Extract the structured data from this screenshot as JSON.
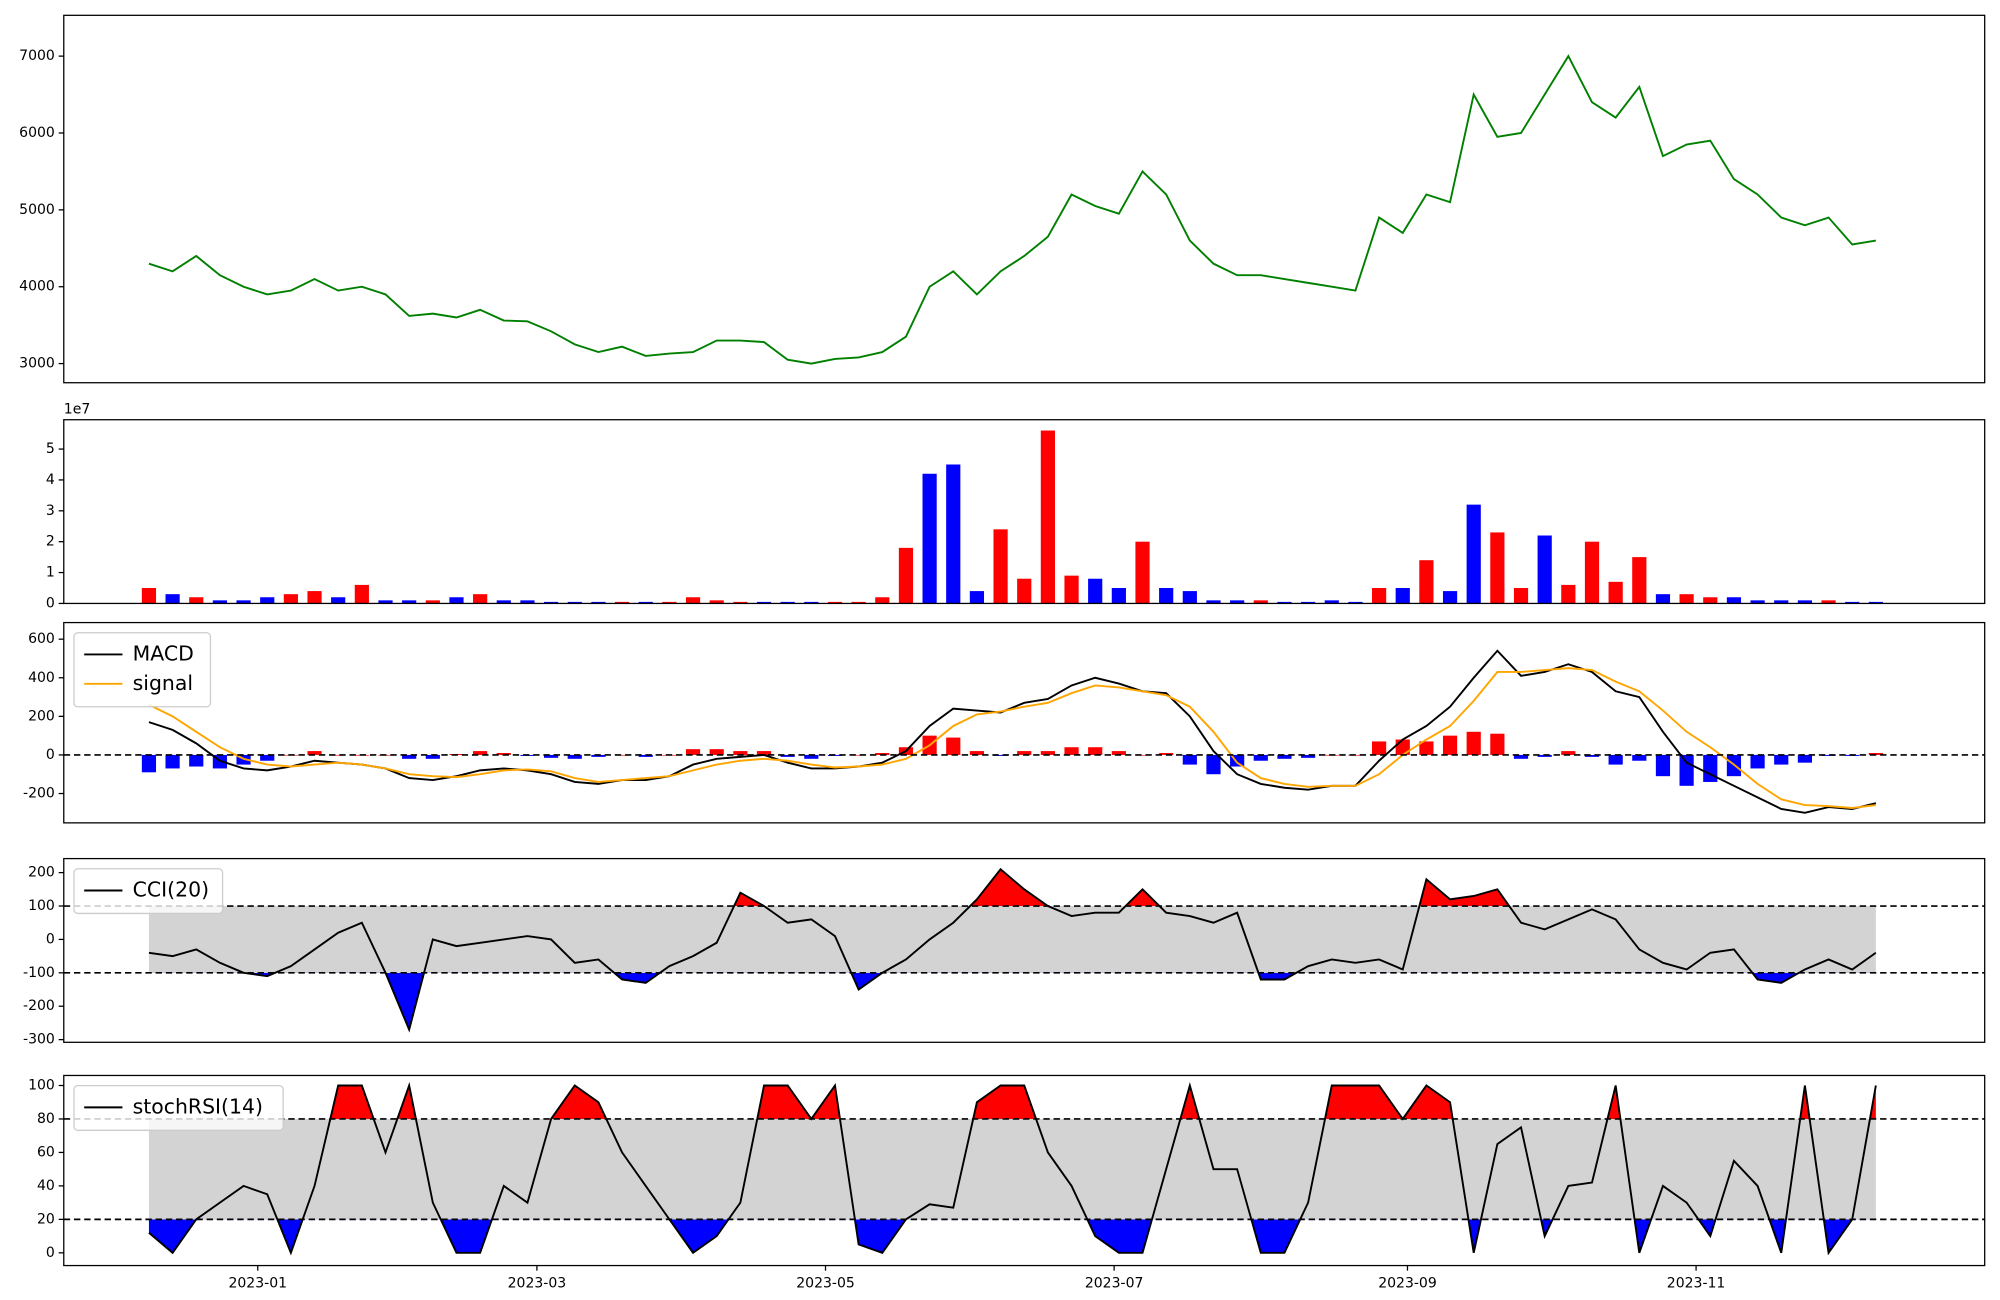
{
  "chart_data": [
    {
      "type": "line",
      "x": [
        19335,
        19340,
        19345,
        19350,
        19355,
        19360,
        19365,
        19370,
        19375,
        19380,
        19385,
        19390,
        19395,
        19400,
        19405,
        19410,
        19415,
        19420,
        19425,
        19430,
        19435,
        19440,
        19445,
        19450,
        19455,
        19460,
        19465,
        19470,
        19475,
        19480,
        19485,
        19490,
        19495,
        19500,
        19505,
        19510,
        19515,
        19520,
        19525,
        19530,
        19535,
        19540,
        19545,
        19550,
        19555,
        19560,
        19565,
        19570,
        19575,
        19580,
        19585,
        19590,
        19595,
        19600,
        19605,
        19610,
        19615,
        19620,
        19625,
        19630,
        19635,
        19640,
        19645,
        19650,
        19655,
        19660,
        19665,
        19670,
        19675,
        19680,
        19685,
        19690,
        19695,
        19700
      ],
      "xlim": [
        19317,
        19723
      ],
      "ylim": [
        2751,
        7531
      ],
      "yticks": [
        3000,
        4000,
        5000,
        6000,
        7000
      ],
      "series": [
        {
          "color": "#008000",
          "values": [
            4300,
            4200,
            4400,
            4150,
            4000,
            3900,
            3950,
            4100,
            3950,
            4000,
            3900,
            3620,
            3650,
            3600,
            3700,
            3560,
            3550,
            3420,
            3250,
            3150,
            3220,
            3100,
            3130,
            3150,
            3300,
            3300,
            3280,
            3050,
            3000,
            3060,
            3080,
            3150,
            3350,
            4000,
            4200,
            3900,
            4200,
            4400,
            4650,
            5200,
            5050,
            4950,
            5500,
            5200,
            4600,
            4300,
            4150,
            4150,
            4100,
            4050,
            4000,
            3950,
            4900,
            4700,
            5200,
            5100,
            6500,
            5950,
            6000,
            6500,
            7000,
            6400,
            6200,
            6600,
            5700,
            5850,
            5900,
            5400,
            5200,
            4900,
            4800,
            4900,
            4550,
            4600
          ]
        }
      ]
    },
    {
      "type": "bar",
      "x": [
        19335,
        19340,
        19345,
        19350,
        19355,
        19360,
        19365,
        19370,
        19375,
        19380,
        19385,
        19390,
        19395,
        19400,
        19405,
        19410,
        19415,
        19420,
        19425,
        19430,
        19435,
        19440,
        19445,
        19450,
        19455,
        19460,
        19465,
        19470,
        19475,
        19480,
        19485,
        19490,
        19495,
        19500,
        19505,
        19510,
        19515,
        19520,
        19525,
        19530,
        19535,
        19540,
        19545,
        19550,
        19555,
        19560,
        19565,
        19570,
        19575,
        19580,
        19585,
        19590,
        19595,
        19600,
        19605,
        19610,
        19615,
        19620,
        19625,
        19630,
        19635,
        19640,
        19645,
        19650,
        19655,
        19660,
        19665,
        19670,
        19675,
        19680,
        19685,
        19690,
        19695,
        19700
      ],
      "xlim": [
        19317,
        19723
      ],
      "ylim": [
        0,
        5.95
      ],
      "yticks": [
        0,
        1,
        2,
        3,
        4,
        5
      ],
      "offset_text": "1e7",
      "series": [
        {
          "type": "bar",
          "values": [
            0.5,
            0.3,
            0.2,
            0.1,
            0.1,
            0.2,
            0.3,
            0.4,
            0.2,
            0.6,
            0.1,
            0.1,
            0.1,
            0.2,
            0.3,
            0.1,
            0.1,
            0.05,
            0.05,
            0.05,
            0.05,
            0.05,
            0.05,
            0.2,
            0.1,
            0.05,
            0.05,
            0.05,
            0.05,
            0.05,
            0.05,
            0.2,
            1.8,
            4.2,
            4.5,
            0.4,
            2.4,
            0.8,
            5.6,
            0.9,
            0.8,
            0.5,
            2.0,
            0.5,
            0.4,
            0.1,
            0.1,
            0.1,
            0.05,
            0.05,
            0.1,
            0.05,
            0.5,
            0.5,
            1.4,
            0.4,
            3.2,
            2.3,
            0.5,
            2.2,
            0.6,
            2.0,
            0.7,
            1.5,
            0.3,
            0.3,
            0.2,
            0.2,
            0.1,
            0.1,
            0.1,
            0.1,
            0.05,
            0.05
          ],
          "colors": [
            "red",
            "blue",
            "red",
            "blue",
            "blue",
            "blue",
            "red",
            "red",
            "blue",
            "red",
            "blue",
            "blue",
            "red",
            "blue",
            "red",
            "blue",
            "blue",
            "blue",
            "blue",
            "blue",
            "red",
            "blue",
            "red",
            "red",
            "red",
            "red",
            "blue",
            "blue",
            "blue",
            "red",
            "red",
            "red",
            "red",
            "blue",
            "blue",
            "blue",
            "red",
            "red",
            "red",
            "red",
            "blue",
            "blue",
            "red",
            "blue",
            "blue",
            "blue",
            "blue",
            "red",
            "blue",
            "blue",
            "blue",
            "blue",
            "red",
            "blue",
            "red",
            "blue",
            "blue",
            "red",
            "red",
            "blue",
            "red",
            "red",
            "red",
            "red",
            "blue",
            "red",
            "red",
            "blue",
            "blue",
            "blue",
            "blue",
            "red",
            "blue",
            "blue"
          ]
        }
      ]
    },
    {
      "type": "line",
      "x": [
        19335,
        19340,
        19345,
        19350,
        19355,
        19360,
        19365,
        19370,
        19375,
        19380,
        19385,
        19390,
        19395,
        19400,
        19405,
        19410,
        19415,
        19420,
        19425,
        19430,
        19435,
        19440,
        19445,
        19450,
        19455,
        19460,
        19465,
        19470,
        19475,
        19480,
        19485,
        19490,
        19495,
        19500,
        19505,
        19510,
        19515,
        19520,
        19525,
        19530,
        19535,
        19540,
        19545,
        19550,
        19555,
        19560,
        19565,
        19570,
        19575,
        19580,
        19585,
        19590,
        19595,
        19600,
        19605,
        19610,
        19615,
        19620,
        19625,
        19630,
        19635,
        19640,
        19645,
        19650,
        19655,
        19660,
        19665,
        19670,
        19675,
        19680,
        19685,
        19690,
        19695,
        19700
      ],
      "xlim": [
        19317,
        19723
      ],
      "ylim": [
        -352,
        686
      ],
      "yticks": [
        -200,
        0,
        200,
        400,
        600
      ],
      "thresholds": [
        0
      ],
      "legend": "upper left",
      "series": [
        {
          "type": "bar",
          "positive_color": "red",
          "negative_color": "blue",
          "values": [
            -90,
            -70,
            -60,
            -70,
            -50,
            -30,
            0,
            20,
            0,
            0,
            0,
            -20,
            -20,
            5,
            20,
            10,
            -5,
            -15,
            -20,
            -10,
            0,
            -10,
            0,
            30,
            30,
            20,
            20,
            -10,
            -20,
            -5,
            0,
            10,
            40,
            100,
            90,
            20,
            -5,
            20,
            20,
            40,
            40,
            20,
            0,
            10,
            -50,
            -100,
            -60,
            -30,
            -20,
            -15,
            0,
            0,
            70,
            80,
            70,
            100,
            120,
            110,
            -20,
            -10,
            20,
            -10,
            -50,
            -30,
            -110,
            -160,
            -140,
            -110,
            -70,
            -50,
            -40,
            -5,
            -5,
            10
          ]
        },
        {
          "name": "MACD",
          "color": "#000000",
          "values": [
            170,
            130,
            60,
            -30,
            -70,
            -80,
            -60,
            -30,
            -40,
            -50,
            -70,
            -120,
            -130,
            -110,
            -80,
            -70,
            -80,
            -100,
            -140,
            -150,
            -130,
            -130,
            -110,
            -50,
            -20,
            -10,
            0,
            -40,
            -70,
            -70,
            -60,
            -40,
            20,
            150,
            240,
            230,
            220,
            270,
            290,
            360,
            400,
            370,
            330,
            320,
            200,
            20,
            -100,
            -150,
            -170,
            -180,
            -160,
            -160,
            -30,
            80,
            150,
            250,
            400,
            540,
            410,
            430,
            470,
            430,
            330,
            300,
            120,
            -40,
            -100,
            -160,
            -220,
            -280,
            -300,
            -270,
            -280,
            -250
          ]
        },
        {
          "name": "signal",
          "color": "#ffa500",
          "values": [
            260,
            200,
            120,
            40,
            -20,
            -50,
            -60,
            -50,
            -40,
            -50,
            -70,
            -100,
            -110,
            -115,
            -100,
            -80,
            -75,
            -85,
            -120,
            -140,
            -130,
            -120,
            -110,
            -80,
            -50,
            -30,
            -20,
            -30,
            -50,
            -65,
            -60,
            -50,
            -20,
            50,
            150,
            210,
            225,
            250,
            270,
            320,
            360,
            350,
            330,
            310,
            250,
            120,
            -40,
            -120,
            -150,
            -165,
            -160,
            -160,
            -100,
            0,
            80,
            150,
            280,
            430,
            430,
            440,
            450,
            440,
            380,
            330,
            230,
            120,
            40,
            -50,
            -150,
            -230,
            -260,
            -265,
            -275,
            -260
          ]
        }
      ]
    },
    {
      "type": "line",
      "x": [
        19335,
        19340,
        19345,
        19350,
        19355,
        19360,
        19365,
        19370,
        19375,
        19380,
        19385,
        19390,
        19395,
        19400,
        19405,
        19410,
        19415,
        19420,
        19425,
        19430,
        19435,
        19440,
        19445,
        19450,
        19455,
        19460,
        19465,
        19470,
        19475,
        19480,
        19485,
        19490,
        19495,
        19500,
        19505,
        19510,
        19515,
        19520,
        19525,
        19530,
        19535,
        19540,
        19545,
        19550,
        19555,
        19560,
        19565,
        19570,
        19575,
        19580,
        19585,
        19590,
        19595,
        19600,
        19605,
        19610,
        19615,
        19620,
        19625,
        19630,
        19635,
        19640,
        19645,
        19650,
        19655,
        19660,
        19665,
        19670,
        19675,
        19680,
        19685,
        19690,
        19695,
        19700
      ],
      "xlim": [
        19317,
        19723
      ],
      "ylim": [
        -308,
        242
      ],
      "yticks": [
        -300,
        -200,
        -100,
        0,
        100,
        200
      ],
      "thresholds": [
        100,
        -100
      ],
      "fill_colors": [
        "red",
        "blue"
      ],
      "band_color": "#d3d3d3",
      "legend": "upper left",
      "series": [
        {
          "name": "CCI(20)",
          "color": "#000000",
          "values": [
            -40,
            -50,
            -30,
            -70,
            -100,
            -110,
            -80,
            -30,
            20,
            50,
            -100,
            -270,
            0,
            -20,
            -10,
            0,
            10,
            0,
            -70,
            -60,
            -120,
            -130,
            -80,
            -50,
            -10,
            140,
            100,
            50,
            60,
            10,
            -150,
            -100,
            -60,
            0,
            50,
            120,
            210,
            150,
            100,
            70,
            80,
            80,
            150,
            80,
            70,
            50,
            80,
            -120,
            -120,
            -80,
            -60,
            -70,
            -60,
            -90,
            180,
            120,
            130,
            150,
            50,
            30,
            60,
            90,
            60,
            -30,
            -70,
            -90,
            -40,
            -30,
            -120,
            -130,
            -90,
            -60,
            -90,
            -40
          ]
        }
      ]
    },
    {
      "type": "line",
      "x": [
        19335,
        19340,
        19345,
        19350,
        19355,
        19360,
        19365,
        19370,
        19375,
        19380,
        19385,
        19390,
        19395,
        19400,
        19405,
        19410,
        19415,
        19420,
        19425,
        19430,
        19435,
        19440,
        19445,
        19450,
        19455,
        19460,
        19465,
        19470,
        19475,
        19480,
        19485,
        19490,
        19495,
        19500,
        19505,
        19510,
        19515,
        19520,
        19525,
        19530,
        19535,
        19540,
        19545,
        19550,
        19555,
        19560,
        19565,
        19570,
        19575,
        19580,
        19585,
        19590,
        19595,
        19600,
        19605,
        19610,
        19615,
        19620,
        19625,
        19630,
        19635,
        19640,
        19645,
        19650,
        19655,
        19660,
        19665,
        19670,
        19675,
        19680,
        19685,
        19690,
        19695,
        19700
      ],
      "xlim": [
        19317,
        19723
      ],
      "ylim": [
        -7.6,
        106
      ],
      "yticks": [
        0,
        20,
        40,
        60,
        80,
        100
      ],
      "xticks": [
        {
          "value": 19358,
          "label": "2023-01"
        },
        {
          "value": 19417,
          "label": "2023-03"
        },
        {
          "value": 19478,
          "label": "2023-05"
        },
        {
          "value": 19539,
          "label": "2023-07"
        },
        {
          "value": 19601,
          "label": "2023-09"
        },
        {
          "value": 19662,
          "label": "2023-11"
        }
      ],
      "thresholds": [
        80,
        20
      ],
      "fill_colors": [
        "red",
        "blue"
      ],
      "band_color": "#d3d3d3",
      "legend": "upper left",
      "series": [
        {
          "name": "stochRSI(14)",
          "color": "#000000",
          "values": [
            12,
            0,
            20,
            30,
            40,
            35,
            0,
            40,
            100,
            100,
            60,
            100,
            30,
            0,
            0,
            40,
            30,
            80,
            100,
            90,
            60,
            40,
            20,
            0,
            10,
            30,
            100,
            100,
            80,
            100,
            5,
            0,
            20,
            29,
            27,
            90,
            100,
            100,
            60,
            40,
            10,
            0,
            0,
            50,
            100,
            50,
            50,
            0,
            0,
            30,
            100,
            100,
            100,
            80,
            100,
            90,
            0,
            65,
            75,
            10,
            40,
            42,
            100,
            0,
            40,
            30,
            10,
            55,
            40,
            0,
            100,
            0,
            20,
            100
          ]
        }
      ]
    }
  ]
}
